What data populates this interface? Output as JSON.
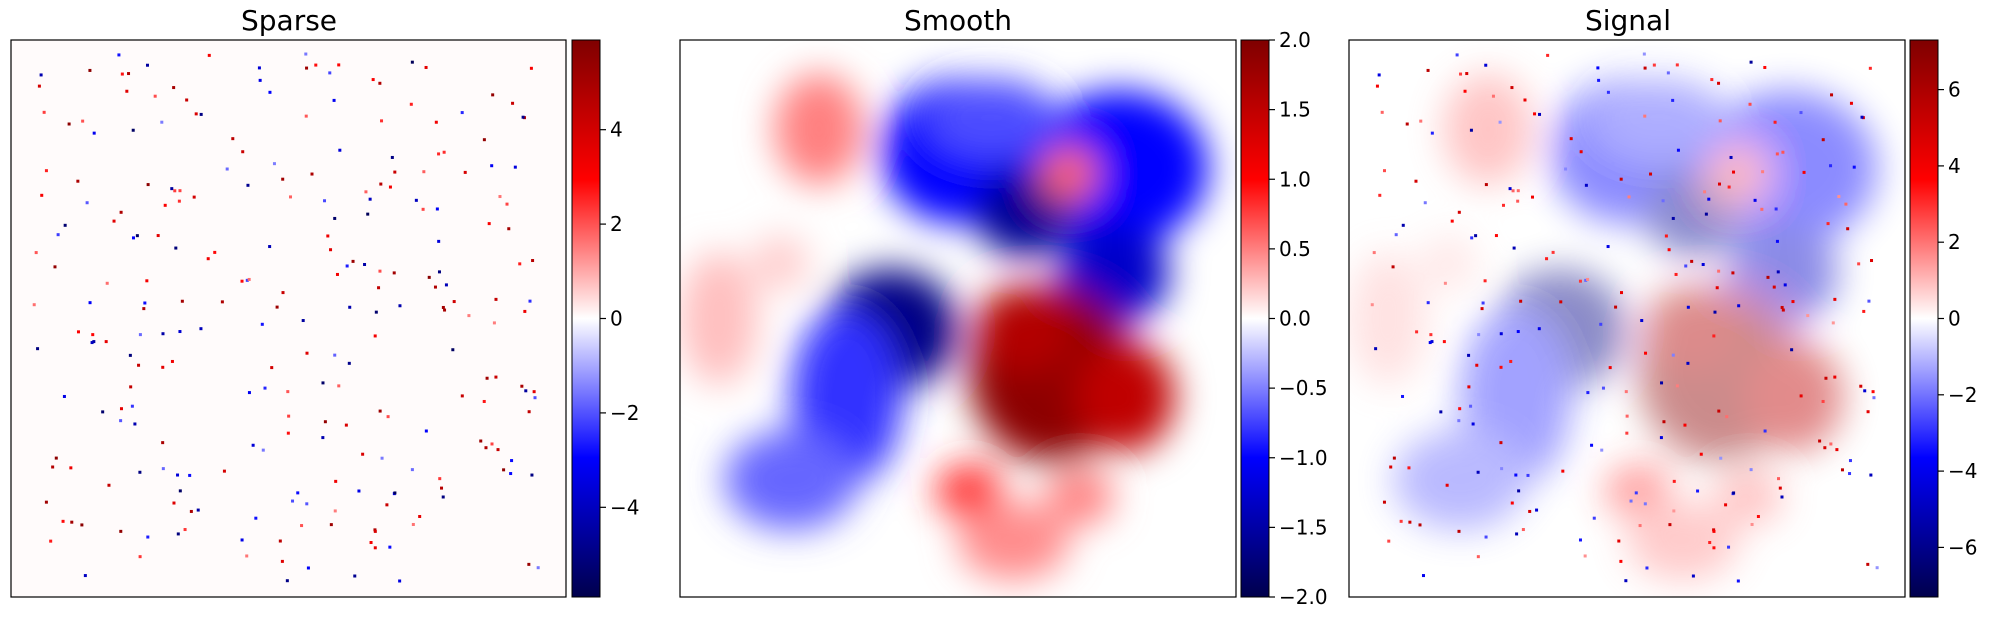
{
  "chart_data": [
    {
      "type": "heatmap",
      "title": "Sparse",
      "colormap": "seismic",
      "vmin": -5.9,
      "vmax": 5.9,
      "colorbar_ticks": [
        -4,
        -2,
        0,
        2,
        4
      ],
      "colorbar_tick_labels": [
        "−4",
        "−2",
        "0",
        "2",
        "4"
      ],
      "axes_ticks_visible": false,
      "content": "sparse isolated red and blue dots on a near-white background"
    },
    {
      "type": "heatmap",
      "title": "Smooth",
      "colormap": "seismic",
      "vmin": -2.0,
      "vmax": 2.0,
      "colorbar_ticks": [
        -2.0,
        -1.5,
        -1.0,
        -0.5,
        0.0,
        0.5,
        1.0,
        1.5,
        2.0
      ],
      "colorbar_tick_labels": [
        "−2.0",
        "−1.5",
        "−1.0",
        "−0.5",
        "0.0",
        "0.5",
        "1.0",
        "1.5",
        "2.0"
      ],
      "axes_ticks_visible": false,
      "content": "smooth blobs: strong red region center-right, blue regions upper-center and left-center"
    },
    {
      "type": "heatmap",
      "title": "Signal",
      "colormap": "seismic",
      "vmin": -7.3,
      "vmax": 7.3,
      "colorbar_ticks": [
        -6,
        -4,
        -2,
        0,
        2,
        4,
        6
      ],
      "colorbar_tick_labels": [
        "−6",
        "−4",
        "−2",
        "0",
        "2",
        "4",
        "6"
      ],
      "axes_ticks_visible": false,
      "content": "faint smooth field (sum of sparse and smooth) with scattered dots"
    }
  ]
}
